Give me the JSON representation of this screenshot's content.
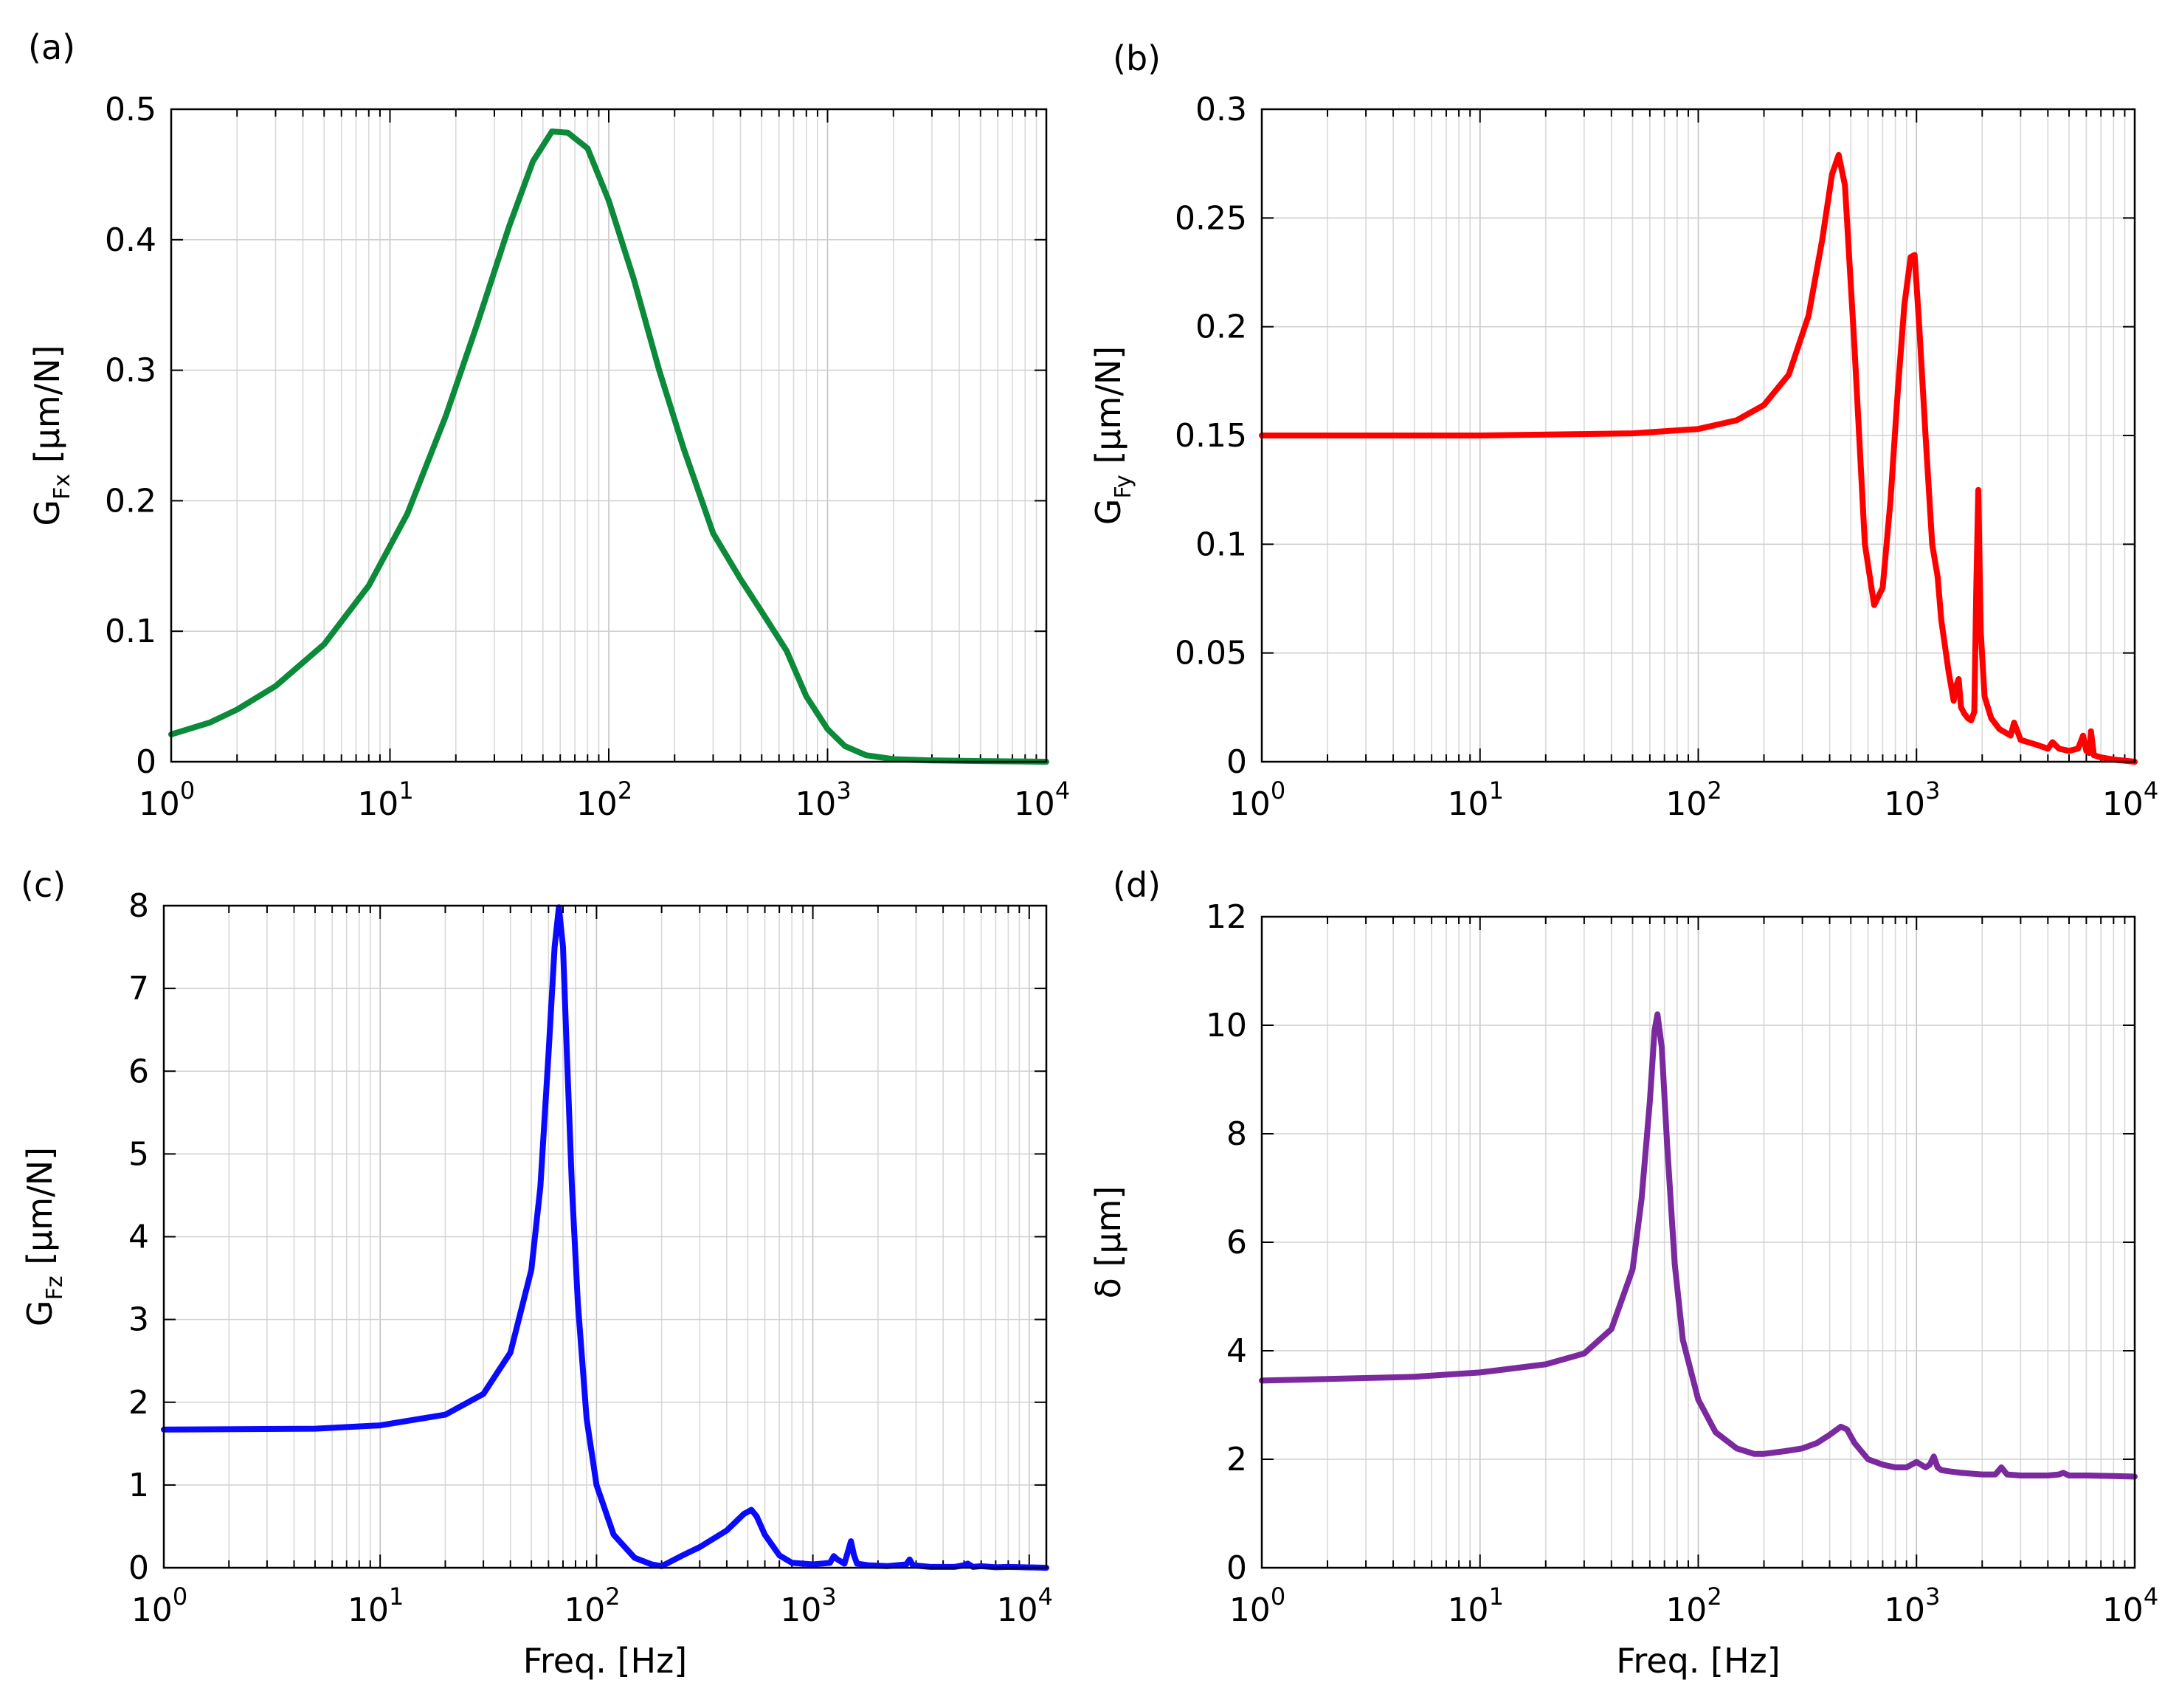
{
  "chart_data": [
    {
      "panel": "(a)",
      "type": "line",
      "xscale": "log",
      "xlim": [
        1,
        10000
      ],
      "ylim": [
        0,
        0.5
      ],
      "xticks": [
        {
          "value": 1,
          "base": "10",
          "exp": "0"
        },
        {
          "value": 10,
          "base": "10",
          "exp": "1"
        },
        {
          "value": 100,
          "base": "10",
          "exp": "2"
        },
        {
          "value": 1000,
          "base": "10",
          "exp": "3"
        },
        {
          "value": 10000,
          "base": "10",
          "exp": "4"
        }
      ],
      "yticks": [
        {
          "value": 0,
          "label": "0"
        },
        {
          "value": 0.1,
          "label": "0.1"
        },
        {
          "value": 0.2,
          "label": "0.2"
        },
        {
          "value": 0.3,
          "label": "0.3"
        },
        {
          "value": 0.4,
          "label": "0.4"
        },
        {
          "value": 0.5,
          "label": "0.5"
        }
      ],
      "xlabel": "",
      "ylabel": {
        "main": "G",
        "sub": "Fx",
        "unit": " [µm/N]"
      },
      "grid": true,
      "series": [
        {
          "name": "G_Fx",
          "color": "#0b8a3a",
          "x": [
            1,
            1.5,
            2,
            3,
            5,
            8,
            12,
            18,
            25,
            35,
            45,
            55,
            65,
            80,
            100,
            130,
            170,
            220,
            300,
            400,
            500,
            650,
            800,
            1000,
            1200,
            1500,
            2000,
            3000,
            5000,
            10000
          ],
          "y": [
            0.021,
            0.03,
            0.04,
            0.058,
            0.09,
            0.135,
            0.19,
            0.265,
            0.335,
            0.41,
            0.46,
            0.483,
            0.482,
            0.47,
            0.43,
            0.37,
            0.3,
            0.24,
            0.175,
            0.14,
            0.115,
            0.085,
            0.05,
            0.025,
            0.012,
            0.005,
            0.002,
            0.001,
            0.0005,
            0
          ]
        }
      ]
    },
    {
      "panel": "(b)",
      "type": "line",
      "xscale": "log",
      "xlim": [
        1,
        10000
      ],
      "ylim": [
        0,
        0.3
      ],
      "xticks": [
        {
          "value": 1,
          "base": "10",
          "exp": "0"
        },
        {
          "value": 10,
          "base": "10",
          "exp": "1"
        },
        {
          "value": 100,
          "base": "10",
          "exp": "2"
        },
        {
          "value": 1000,
          "base": "10",
          "exp": "3"
        },
        {
          "value": 10000,
          "base": "10",
          "exp": "4"
        }
      ],
      "yticks": [
        {
          "value": 0,
          "label": "0"
        },
        {
          "value": 0.05,
          "label": "0.05"
        },
        {
          "value": 0.1,
          "label": "0.1"
        },
        {
          "value": 0.15,
          "label": "0.15"
        },
        {
          "value": 0.2,
          "label": "0.2"
        },
        {
          "value": 0.25,
          "label": "0.25"
        },
        {
          "value": 0.3,
          "label": "0.3"
        }
      ],
      "xlabel": "",
      "ylabel": {
        "main": "G",
        "sub": "Fy",
        "unit": " [µm/N]"
      },
      "grid": true,
      "series": [
        {
          "name": "G_Fy",
          "color": "#ff0000",
          "x": [
            1,
            10,
            50,
            100,
            150,
            200,
            260,
            320,
            370,
            410,
            440,
            470,
            520,
            580,
            640,
            700,
            760,
            820,
            880,
            940,
            980,
            1030,
            1100,
            1180,
            1250,
            1270,
            1300,
            1400,
            1480,
            1520,
            1560,
            1600,
            1660,
            1720,
            1780,
            1840,
            1880,
            1920,
            1970,
            2050,
            2200,
            2400,
            2700,
            2800,
            3000,
            3500,
            4000,
            4200,
            4500,
            5000,
            5500,
            5800,
            6000,
            6200,
            6300,
            6500,
            7000,
            8000,
            10000
          ],
          "y": [
            0.15,
            0.15,
            0.151,
            0.153,
            0.157,
            0.164,
            0.178,
            0.205,
            0.24,
            0.27,
            0.279,
            0.265,
            0.19,
            0.1,
            0.072,
            0.08,
            0.12,
            0.17,
            0.21,
            0.232,
            0.233,
            0.2,
            0.15,
            0.1,
            0.085,
            0.077,
            0.065,
            0.042,
            0.028,
            0.035,
            0.038,
            0.025,
            0.022,
            0.02,
            0.019,
            0.023,
            0.08,
            0.125,
            0.06,
            0.03,
            0.02,
            0.015,
            0.012,
            0.018,
            0.01,
            0.008,
            0.006,
            0.009,
            0.006,
            0.005,
            0.006,
            0.012,
            0.005,
            0.004,
            0.014,
            0.003,
            0.002,
            0.001,
            0
          ]
        }
      ]
    },
    {
      "panel": "(c)",
      "type": "line",
      "xscale": "log",
      "xlim": [
        1,
        12000
      ],
      "ylim": [
        0,
        8
      ],
      "xticks": [
        {
          "value": 1,
          "base": "10",
          "exp": "0"
        },
        {
          "value": 10,
          "base": "10",
          "exp": "1"
        },
        {
          "value": 100,
          "base": "10",
          "exp": "2"
        },
        {
          "value": 1000,
          "base": "10",
          "exp": "3"
        },
        {
          "value": 10000,
          "base": "10",
          "exp": "4"
        }
      ],
      "yticks": [
        {
          "value": 0,
          "label": "0"
        },
        {
          "value": 1,
          "label": "1"
        },
        {
          "value": 2,
          "label": "2"
        },
        {
          "value": 3,
          "label": "3"
        },
        {
          "value": 4,
          "label": "4"
        },
        {
          "value": 5,
          "label": "5"
        },
        {
          "value": 6,
          "label": "6"
        },
        {
          "value": 7,
          "label": "7"
        },
        {
          "value": 8,
          "label": "8"
        }
      ],
      "xlabel": "Freq. [Hz]",
      "ylabel": {
        "main": "G",
        "sub": "Fz",
        "unit": " [µm/N]"
      },
      "grid": true,
      "series": [
        {
          "name": "G_Fz",
          "color": "#0a0aff",
          "x": [
            1,
            5,
            10,
            20,
            30,
            40,
            50,
            55,
            60,
            64,
            67,
            70,
            73,
            77,
            82,
            90,
            100,
            120,
            150,
            180,
            200,
            250,
            300,
            400,
            480,
            520,
            550,
            600,
            700,
            800,
            1000,
            1200,
            1250,
            1300,
            1400,
            1500,
            1550,
            1600,
            1800,
            2200,
            2700,
            2800,
            2900,
            3500,
            4500,
            5000,
            5200,
            5500,
            6000,
            7000,
            8000,
            12000
          ],
          "y": [
            1.67,
            1.68,
            1.72,
            1.85,
            2.1,
            2.6,
            3.6,
            4.6,
            6.2,
            7.5,
            7.98,
            7.5,
            6.2,
            4.6,
            3.2,
            1.8,
            1.0,
            0.4,
            0.12,
            0.04,
            0.02,
            0.15,
            0.25,
            0.45,
            0.65,
            0.7,
            0.62,
            0.4,
            0.15,
            0.06,
            0.04,
            0.06,
            0.14,
            0.1,
            0.05,
            0.32,
            0.15,
            0.05,
            0.03,
            0.02,
            0.04,
            0.1,
            0.03,
            0.01,
            0.01,
            0.03,
            0.05,
            0.01,
            0.02,
            0.005,
            0.01,
            0
          ]
        }
      ]
    },
    {
      "panel": "(d)",
      "type": "line",
      "xscale": "log",
      "xlim": [
        1,
        10000
      ],
      "ylim": [
        0,
        12
      ],
      "xticks": [
        {
          "value": 1,
          "base": "10",
          "exp": "0"
        },
        {
          "value": 10,
          "base": "10",
          "exp": "1"
        },
        {
          "value": 100,
          "base": "10",
          "exp": "2"
        },
        {
          "value": 1000,
          "base": "10",
          "exp": "3"
        },
        {
          "value": 10000,
          "base": "10",
          "exp": "4"
        }
      ],
      "yticks": [
        {
          "value": 0,
          "label": "0"
        },
        {
          "value": 2,
          "label": "2"
        },
        {
          "value": 4,
          "label": "4"
        },
        {
          "value": 6,
          "label": "6"
        },
        {
          "value": 8,
          "label": "8"
        },
        {
          "value": 10,
          "label": "10"
        },
        {
          "value": 12,
          "label": "12"
        }
      ],
      "xlabel": "Freq. [Hz]",
      "ylabel": {
        "main": "δ",
        "sub": "",
        "unit": " [µm]"
      },
      "grid": true,
      "series": [
        {
          "name": "delta",
          "color": "#7a2a9e",
          "x": [
            1,
            5,
            10,
            20,
            30,
            40,
            50,
            55,
            60,
            63,
            65,
            68,
            72,
            78,
            85,
            100,
            120,
            150,
            180,
            200,
            250,
            300,
            350,
            400,
            450,
            480,
            520,
            600,
            700,
            800,
            900,
            1000,
            1100,
            1150,
            1200,
            1250,
            1300,
            1400,
            1600,
            2000,
            2300,
            2450,
            2600,
            3000,
            4000,
            4500,
            4700,
            5000,
            6000,
            8000,
            10000
          ],
          "y": [
            3.45,
            3.52,
            3.6,
            3.75,
            3.95,
            4.4,
            5.5,
            6.8,
            8.6,
            9.9,
            10.2,
            9.6,
            7.8,
            5.6,
            4.2,
            3.1,
            2.5,
            2.2,
            2.1,
            2.1,
            2.15,
            2.2,
            2.3,
            2.45,
            2.6,
            2.55,
            2.3,
            2.0,
            1.9,
            1.85,
            1.85,
            1.95,
            1.85,
            1.9,
            2.05,
            1.85,
            1.8,
            1.78,
            1.75,
            1.72,
            1.72,
            1.85,
            1.72,
            1.7,
            1.7,
            1.72,
            1.75,
            1.7,
            1.7,
            1.69,
            1.68
          ]
        }
      ]
    }
  ]
}
